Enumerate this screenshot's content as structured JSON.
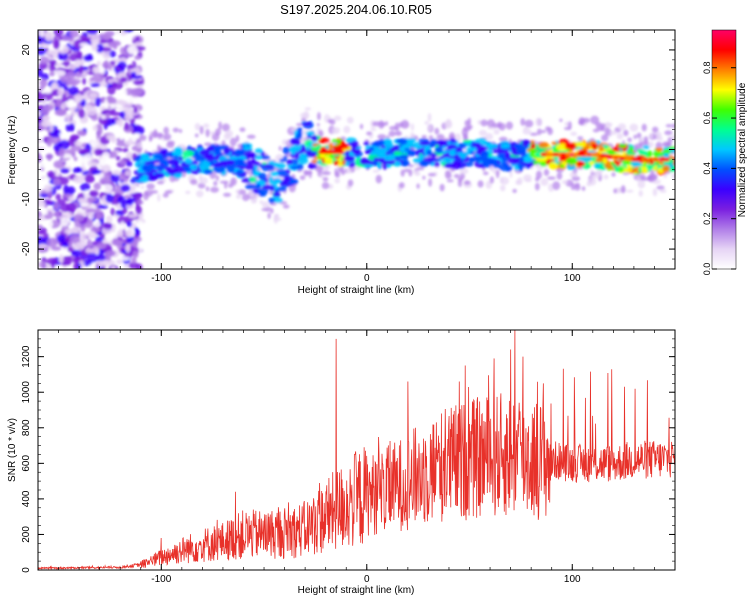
{
  "title": "S197.2025.204.06.10.R05",
  "colors": {
    "snr_line": "#e8312a",
    "colormap": [
      "#ffffff",
      "#e6d4f5",
      "#b07ee8",
      "#7a1fe0",
      "#3a00ff",
      "#0050ff",
      "#00c8ff",
      "#00ff90",
      "#40ff00",
      "#ffff00",
      "#ff8000",
      "#ff0000",
      "#ff0066"
    ]
  },
  "chart_data": [
    {
      "type": "heatmap",
      "xlabel": "Height of straight line (km)",
      "ylabel": "Frequency (Hz)",
      "xlim": [
        -160,
        150
      ],
      "ylim": [
        -24,
        24
      ],
      "x_ticks": [
        -100,
        0,
        100
      ],
      "x_tick_labels": [
        "-100",
        "0",
        "100"
      ],
      "y_ticks": [
        -20,
        -10,
        0,
        10,
        20
      ],
      "y_tick_labels": [
        "-20",
        "-10",
        "0",
        "10",
        "20"
      ],
      "colorbar": {
        "label": "Normalized spectral amplitude",
        "range": [
          0.0,
          0.95
        ],
        "ticks": [
          0.0,
          0.2,
          0.4,
          0.6,
          0.8
        ],
        "tick_labels": [
          "0.0",
          "0.2",
          "0.4",
          "0.6",
          "0.8"
        ]
      },
      "ridge": {
        "x": [
          -112,
          -100,
          -90,
          -80,
          -70,
          -60,
          -50,
          -45,
          -40,
          -35,
          -30,
          -25,
          -20,
          -10,
          0,
          10,
          20,
          30,
          40,
          50,
          60,
          70,
          80,
          90,
          100,
          110,
          120,
          130,
          140,
          148
        ],
        "y": [
          -4,
          -3,
          -2.5,
          -2,
          -2,
          -3,
          -5,
          -8,
          -5,
          -2,
          2,
          0,
          -0.5,
          -0.5,
          -1,
          -1,
          -0.5,
          -0.5,
          -1,
          -0.5,
          -1,
          -1.5,
          -1,
          -1,
          -1,
          -1,
          -1.5,
          -2,
          -2,
          -2
        ]
      }
    },
    {
      "type": "line",
      "xlabel": "Height of straight line (km)",
      "ylabel": "SNR (10 * v/v)",
      "xlim": [
        -160,
        150
      ],
      "ylim": [
        0,
        1350
      ],
      "x_ticks": [
        -100,
        0,
        100
      ],
      "x_tick_labels": [
        "-100",
        "0",
        "100"
      ],
      "y_ticks": [
        0,
        200,
        400,
        600,
        800,
        1000,
        1200
      ],
      "y_tick_labels": [
        "0",
        "200",
        "400",
        "600",
        "800",
        "1000",
        "1200"
      ],
      "envelope": {
        "x": [
          -160,
          -120,
          -110,
          -100,
          -90,
          -80,
          -70,
          -60,
          -50,
          -40,
          -30,
          -20,
          -10,
          0,
          10,
          20,
          30,
          40,
          50,
          60,
          70,
          80,
          90,
          100,
          110,
          120,
          130,
          140,
          150
        ],
        "y": [
          10,
          15,
          30,
          70,
          110,
          140,
          160,
          200,
          200,
          210,
          230,
          300,
          370,
          420,
          450,
          500,
          560,
          600,
          620,
          640,
          650,
          630,
          620,
          600,
          600,
          600,
          620,
          620,
          630
        ]
      },
      "spikes": [
        {
          "x": -100,
          "y": 180
        },
        {
          "x": -64,
          "y": 440
        },
        {
          "x": -49,
          "y": 310
        },
        {
          "x": -38,
          "y": 380
        },
        {
          "x": -15,
          "y": 1300
        },
        {
          "x": 20,
          "y": 1060
        },
        {
          "x": 45,
          "y": 1060
        },
        {
          "x": 48,
          "y": 1150
        },
        {
          "x": 62,
          "y": 1190
        },
        {
          "x": 70,
          "y": 1240
        },
        {
          "x": 72,
          "y": 1350
        },
        {
          "x": 76,
          "y": 1200
        },
        {
          "x": 86,
          "y": 1050
        }
      ]
    }
  ]
}
